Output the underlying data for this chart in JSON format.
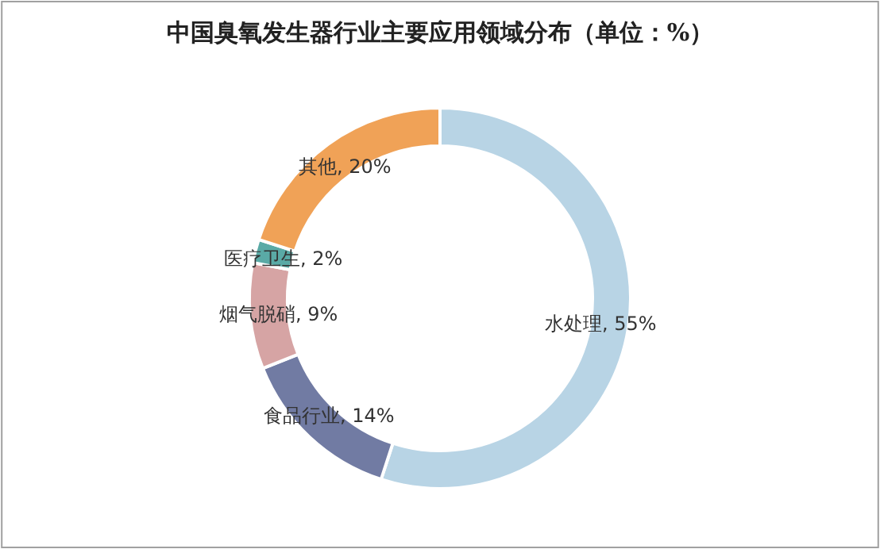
{
  "chart_data": {
    "type": "donut",
    "title": "中国臭氧发生器行业主要应用领域分布（单位：%）",
    "categories": [
      "水处理",
      "食品行业",
      "烟气脱硝",
      "医疗卫生",
      "其他"
    ],
    "values": [
      55,
      14,
      9,
      2,
      20
    ],
    "value_labels": [
      "55%",
      "14%",
      "9%",
      "2%",
      "20%"
    ],
    "colors": [
      "#b8d4e5",
      "#717ba3",
      "#d6a4a4",
      "#5aaaa6",
      "#f0a257"
    ],
    "legend": false
  }
}
